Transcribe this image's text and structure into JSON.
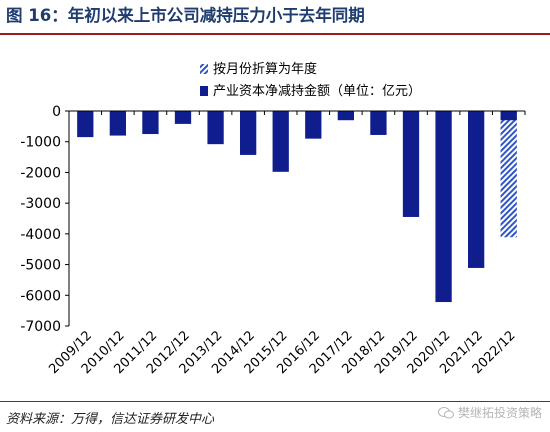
{
  "figure": {
    "title": "图 16：年初以来上市公司减持压力小于去年同期",
    "source": "资料来源：万得，信达证券研发中心",
    "watermark": "樊继拓投资策略"
  },
  "colors": {
    "bar": "#0f1e8c",
    "hatch": "#2f55c8",
    "axis": "#000000",
    "title": "#1f3c6e",
    "rule": "#9b1b1e"
  },
  "chart_data": {
    "type": "bar",
    "categories": [
      "2009/12",
      "2010/12",
      "2011/12",
      "2012/12",
      "2013/12",
      "2014/12",
      "2015/12",
      "2016/12",
      "2017/12",
      "2018/12",
      "2019/12",
      "2020/12",
      "2021/12",
      "2022/12"
    ],
    "series": [
      {
        "name": "产业资本净减持金额（单位：亿元）",
        "style": "solid",
        "values": [
          -850,
          -800,
          -750,
          -420,
          -1080,
          -1430,
          -1980,
          -900,
          -300,
          -780,
          -3450,
          -6220,
          -5110,
          -300
        ]
      },
      {
        "name": "按月份折算为年度",
        "style": "hatched",
        "values": [
          null,
          null,
          null,
          null,
          null,
          null,
          null,
          null,
          null,
          null,
          null,
          null,
          null,
          -4110
        ]
      }
    ],
    "title": "年初以来上市公司减持压力小于去年同期",
    "ylim": [
      -7000,
      0
    ],
    "yticks": [
      0,
      -1000,
      -2000,
      -3000,
      -4000,
      -5000,
      -6000,
      -7000
    ],
    "legend_position": "top-right",
    "grid": false
  }
}
